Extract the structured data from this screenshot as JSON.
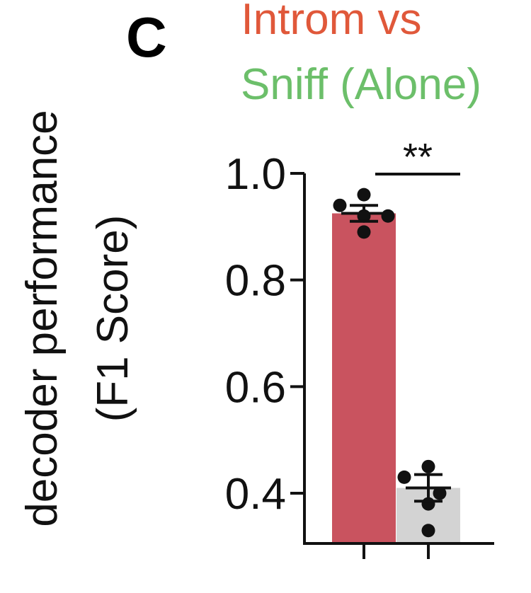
{
  "panel_letter": "C",
  "title": {
    "line1": "Introm vs",
    "line2": "Sniff (Alone)",
    "line1_color": "#e0583a",
    "line2_color": "#6cbf6a"
  },
  "chart_data": {
    "type": "bar",
    "categories": [
      "Introm vs",
      "Sniff (Alone)"
    ],
    "values": [
      0.925,
      0.41
    ],
    "sem": [
      0.015,
      0.025
    ],
    "points": [
      [
        0.96,
        0.94,
        0.92,
        0.92,
        0.89
      ],
      [
        0.45,
        0.43,
        0.4,
        0.38,
        0.33
      ]
    ],
    "bar_colors": [
      "#c9535f",
      "#d3d3d3"
    ],
    "ylabel_lines": [
      "decoder performance",
      "(F1 Score)"
    ],
    "yticks": [
      "1.0",
      "0.8",
      "0.6",
      "0.4"
    ],
    "ytick_values": [
      1.0,
      0.8,
      0.6,
      0.4
    ],
    "ylim": [
      0.33,
      1.0
    ],
    "significance": "**"
  }
}
